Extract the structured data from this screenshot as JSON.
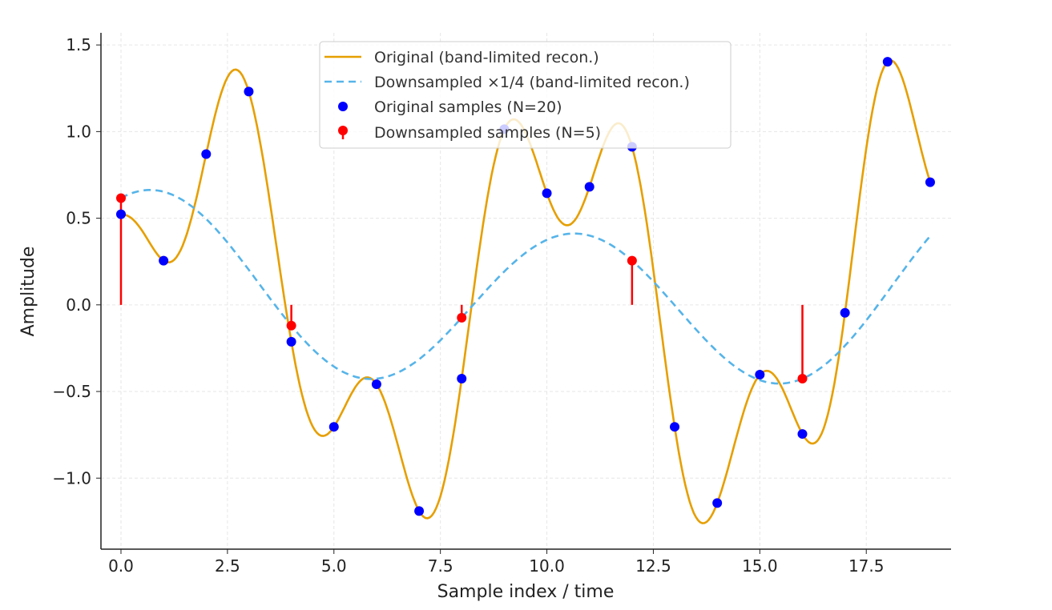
{
  "chart_data": {
    "type": "line",
    "title": "",
    "xlabel": "Sample index / time",
    "ylabel": "Amplitude",
    "xlim": [
      -0.47,
      19.49
    ],
    "ylim": [
      -1.41,
      1.57
    ],
    "xticks": [
      "0.0",
      "2.5",
      "5.0",
      "7.5",
      "10.0",
      "12.5",
      "15.0",
      "17.5"
    ],
    "xtick_values": [
      0,
      2.5,
      5,
      7.5,
      10,
      12.5,
      15,
      17.5
    ],
    "yticks": [
      "−1.0",
      "−0.5",
      "0.0",
      "0.5",
      "1.0",
      "1.5"
    ],
    "ytick_values": [
      -1,
      -0.5,
      0,
      0.5,
      1,
      1.5
    ],
    "grid": true,
    "legend_placement": "top-center",
    "series": [
      {
        "name": "Original (band-limited recon.)",
        "kind": "line",
        "color": "#E69F00",
        "style": "solid"
      },
      {
        "name": "Downsampled ×1/4 (band-limited recon.)",
        "kind": "line",
        "color": "#56B4E9",
        "style": "dashed"
      },
      {
        "name": "Original samples (N=20)",
        "kind": "scatter",
        "color": "#0000FF",
        "x": [
          0,
          1,
          2,
          3,
          4,
          5,
          6,
          7,
          8,
          9,
          10,
          11,
          12,
          13,
          14,
          15,
          16,
          17,
          18,
          19
        ],
        "y": [
          0.523,
          0.255,
          0.87,
          1.231,
          -0.213,
          -0.704,
          -0.458,
          -1.19,
          -0.426,
          1.014,
          0.644,
          0.681,
          0.912,
          -0.704,
          -1.144,
          -0.403,
          -0.745,
          -0.046,
          1.403,
          0.708
        ]
      },
      {
        "name": "Downsampled samples (N=5)",
        "kind": "stem",
        "color": "#FF0000",
        "x": [
          0,
          4,
          8,
          12,
          16
        ],
        "y": [
          0.616,
          -0.12,
          -0.074,
          0.255,
          -0.426
        ]
      }
    ]
  }
}
